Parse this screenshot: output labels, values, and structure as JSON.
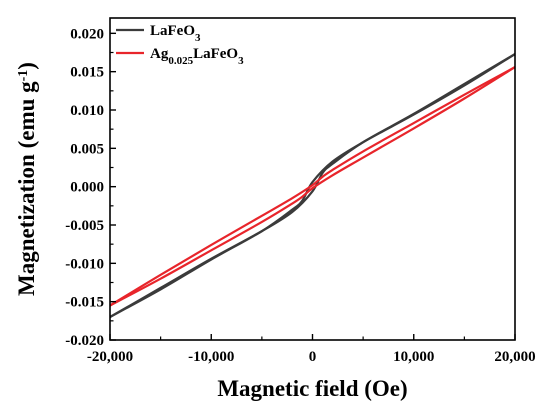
{
  "chart_data": {
    "type": "line",
    "xlabel": "Magnetic field (Oe)",
    "ylabel": {
      "main": "Magnetization (emu g",
      "sup": "-1",
      "close": ")"
    },
    "xlim": [
      -20000,
      20000
    ],
    "ylim": [
      -0.02,
      0.022
    ],
    "x_ticks": [
      -20000,
      -10000,
      0,
      10000,
      20000
    ],
    "x_tick_labels": [
      "-20,000",
      "-10,000",
      "0",
      "10,000",
      "20,000"
    ],
    "y_ticks": [
      -0.02,
      -0.015,
      -0.01,
      -0.005,
      0.0,
      0.005,
      0.01,
      0.015,
      0.02
    ],
    "y_tick_labels": [
      "-0.020",
      "-0.015",
      "-0.010",
      "-0.005",
      "0.000",
      "0.005",
      "0.010",
      "0.015",
      "0.020"
    ],
    "grid": false,
    "legend_position": "top-left",
    "series": [
      {
        "name": "LaFeO₃",
        "legend": {
          "base": "LaFeO",
          "sub": "3",
          "tail": ""
        },
        "color": "#3b3b3b",
        "branch_upper": {
          "x": [
            -20000,
            -15000,
            -10000,
            -5000,
            -2000,
            0,
            1000,
            2000,
            5000,
            10000,
            15000,
            20000
          ],
          "y": [
            -0.017,
            -0.0132,
            -0.0094,
            -0.0058,
            -0.0033,
            -0.0006,
            0.0018,
            0.003,
            0.0058,
            0.0095,
            0.0134,
            0.0173
          ]
        },
        "branch_lower": {
          "x": [
            -20000,
            -15000,
            -10000,
            -5000,
            -2000,
            -1000,
            0,
            2000,
            5000,
            10000,
            15000,
            20000
          ],
          "y": [
            -0.017,
            -0.0134,
            -0.0095,
            -0.0058,
            -0.003,
            -0.0018,
            0.0006,
            0.0033,
            0.0058,
            0.0094,
            0.0132,
            0.0173
          ]
        }
      },
      {
        "name": "Ag₀.₀₂₅LaFeO₃",
        "legend": {
          "base": "Ag",
          "sub": "0.025",
          "tail": "LaFeO",
          "sub2": "3"
        },
        "color": "#e8252b",
        "branch_upper": {
          "x": [
            -20000,
            -15000,
            -10000,
            -5000,
            -2000,
            0,
            1000,
            2000,
            5000,
            10000,
            15000,
            20000
          ],
          "y": [
            -0.0155,
            -0.0115,
            -0.0076,
            -0.0038,
            -0.0015,
            0.0002,
            0.0013,
            0.0022,
            0.0046,
            0.0083,
            0.012,
            0.0156
          ]
        },
        "branch_lower": {
          "x": [
            -20000,
            -15000,
            -10000,
            -5000,
            -2000,
            -1000,
            0,
            2000,
            5000,
            10000,
            15000,
            20000
          ],
          "y": [
            -0.0155,
            -0.012,
            -0.0083,
            -0.0046,
            -0.0022,
            -0.0013,
            -0.0002,
            0.0015,
            0.0038,
            0.0076,
            0.0115,
            0.0156
          ]
        }
      }
    ]
  }
}
